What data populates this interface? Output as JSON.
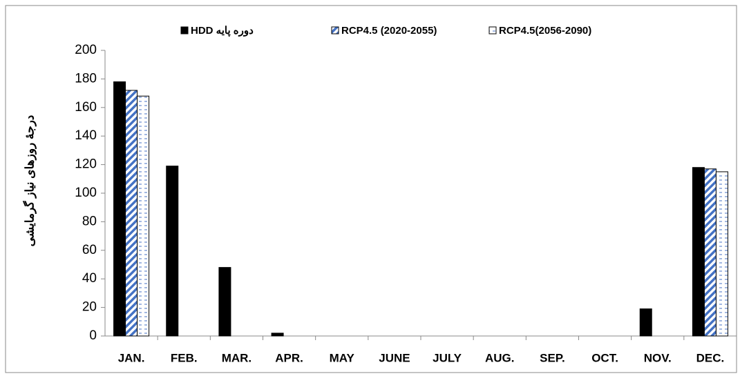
{
  "chart_data": {
    "type": "bar",
    "y_label": "درجهٔ روزهای نیاز گرمایشی",
    "categories": [
      "JAN.",
      "FEB.",
      "MAR.",
      "APR.",
      "MAY",
      "JUNE",
      "JULY",
      "AUG.",
      "SEP.",
      "OCT.",
      "NOV.",
      "DEC."
    ],
    "series": [
      {
        "name": "HDD دوره پایه",
        "color": "#000000",
        "hatch": "solid",
        "values": [
          178,
          119,
          48,
          2,
          0,
          0,
          0,
          0,
          0,
          0,
          19,
          118
        ]
      },
      {
        "name": "RCP4.5 (2020-2055)",
        "color": "#4472c4",
        "hatch": "diagonal",
        "values": [
          172,
          0,
          0,
          0,
          0,
          0,
          0,
          0,
          0,
          0,
          0,
          117
        ]
      },
      {
        "name": "RCP4.5(2056-2090)",
        "color": "#4472c4",
        "hatch": "dashed",
        "values": [
          168,
          0,
          0,
          0,
          0,
          0,
          0,
          0,
          0,
          0,
          0,
          115
        ]
      }
    ],
    "ylim": [
      0,
      200
    ],
    "yticks": [
      0,
      20,
      40,
      60,
      80,
      100,
      120,
      140,
      160,
      180,
      200
    ],
    "grid": false,
    "legend": "top"
  }
}
